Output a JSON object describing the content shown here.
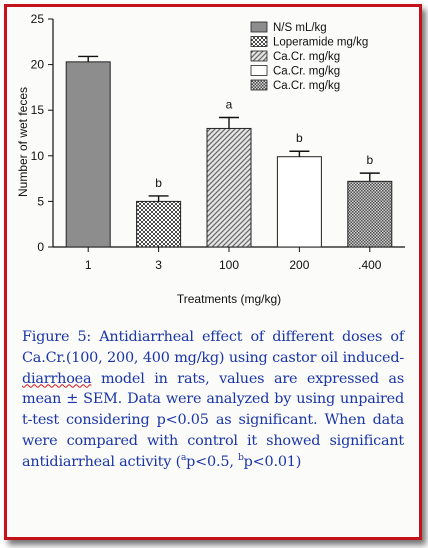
{
  "chart_data": {
    "type": "bar",
    "xlabel": "Treatments (mg/kg)",
    "ylabel": "Number of wet feces",
    "ylim": [
      0,
      25
    ],
    "yticks": [
      0,
      5,
      10,
      15,
      20,
      25
    ],
    "categories": [
      "1",
      "3",
      "100",
      "200",
      ".400"
    ],
    "values": [
      20.3,
      5.0,
      13.0,
      9.9,
      7.2
    ],
    "sem": [
      0.6,
      0.6,
      1.2,
      0.6,
      0.9
    ],
    "significance": [
      "",
      "b",
      "a",
      "b",
      "b"
    ],
    "legend_position": "top-right",
    "legend": [
      "N/S mL/kg",
      "Loperamide mg/kg",
      "Ca.Cr. mg/kg",
      "Ca.Cr. mg/kg",
      "Ca.Cr. mg/kg"
    ],
    "fills": [
      "solid-gray",
      "checker",
      "diagonal-hatch",
      "white",
      "fine-checker"
    ],
    "bar_color": "#8d8d8d"
  },
  "caption": {
    "label": "Figure 5:",
    "text_1": " Antidiarrheal effect of different doses of  Ca.Cr.(100, 200, 400 mg/kg) using castor oil induced-",
    "text_wavy": "diarrhoea",
    "text_2": " model in rats, values are expressed as mean ± SEM. Data were analyzed by using unpaired t-test considering p<0.05 as significant. When data were compared with control it showed significant antidiarrheal activity (",
    "sup_a": "a",
    "text_3": "p<0.5, ",
    "sup_b": "b",
    "text_4": "p<0.01)"
  },
  "colors": {
    "border": "#c4121a",
    "caption_text": "#1a35a8",
    "wavy_underline": "#d01818"
  }
}
